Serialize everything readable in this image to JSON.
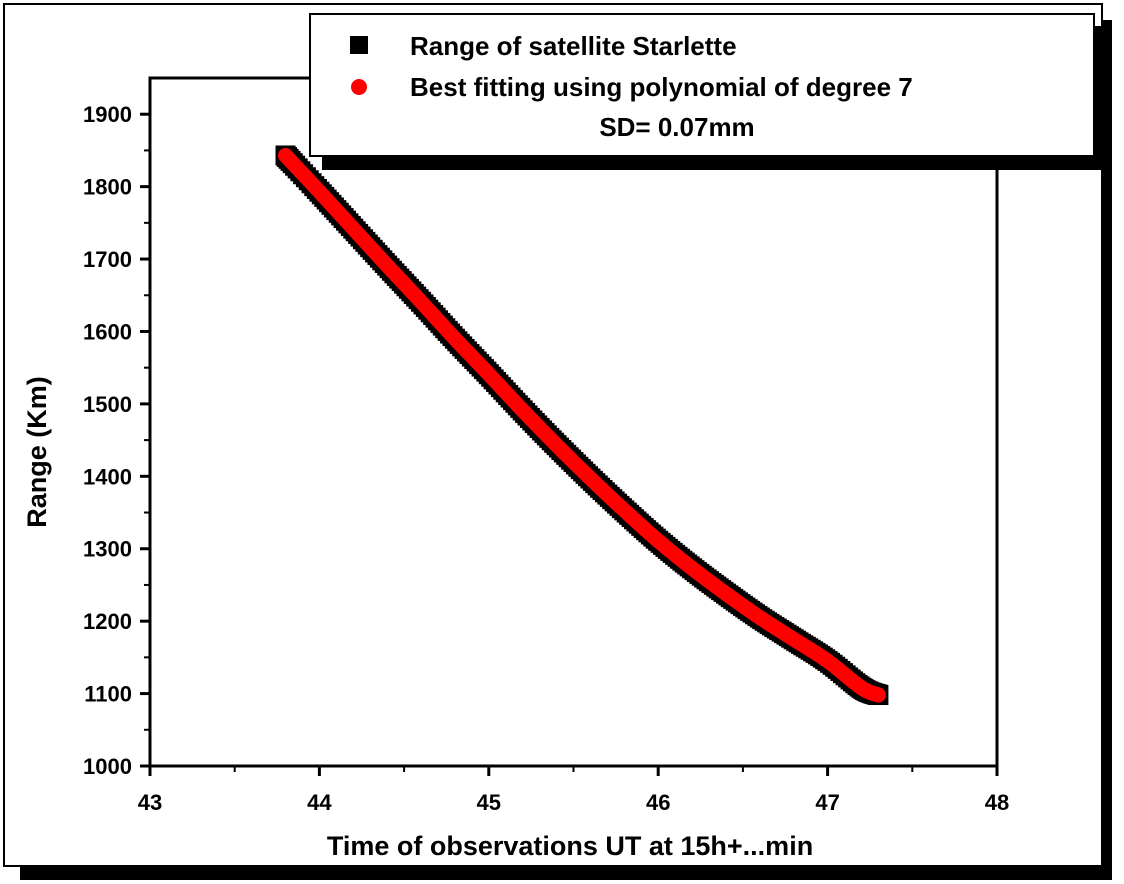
{
  "chart_data": {
    "type": "scatter",
    "xlabel": "Time of observations UT at 15h+...min",
    "ylabel": "Range (Km)",
    "xlim": [
      43,
      48
    ],
    "ylim": [
      1000,
      1950
    ],
    "xticks": [
      43,
      44,
      45,
      46,
      47,
      48
    ],
    "yticks": [
      1000,
      1100,
      1200,
      1300,
      1400,
      1500,
      1600,
      1700,
      1800,
      1900
    ],
    "legend": {
      "placement": "top-right",
      "entries": [
        "Range of satellite Starlette",
        "Best fitting using polynomial of degree 7"
      ],
      "note": "SD= 0.07mm"
    },
    "series": [
      {
        "name": "Range of satellite Starlette",
        "marker": "square",
        "color": "#000000",
        "x": [
          43.8,
          44.0,
          44.2,
          44.4,
          44.6,
          44.8,
          45.0,
          45.2,
          45.4,
          45.6,
          45.8,
          46.0,
          46.2,
          46.4,
          46.6,
          46.8,
          47.0,
          47.2,
          47.3
        ],
        "y": [
          1843,
          1793,
          1742,
          1691,
          1641,
          1590,
          1541,
          1491,
          1443,
          1397,
          1353,
          1311,
          1273,
          1238,
          1205,
          1175,
          1145,
          1108,
          1098
        ]
      },
      {
        "name": "Best fitting using polynomial of degree 7",
        "marker": "circle",
        "color": "#ff0000",
        "x": [
          43.8,
          44.0,
          44.2,
          44.4,
          44.6,
          44.8,
          45.0,
          45.2,
          45.4,
          45.6,
          45.8,
          46.0,
          46.2,
          46.4,
          46.6,
          46.8,
          47.0,
          47.2,
          47.3
        ],
        "y": [
          1843,
          1793,
          1742,
          1691,
          1641,
          1590,
          1541,
          1491,
          1443,
          1397,
          1353,
          1311,
          1273,
          1238,
          1205,
          1175,
          1145,
          1108,
          1098
        ]
      }
    ]
  }
}
